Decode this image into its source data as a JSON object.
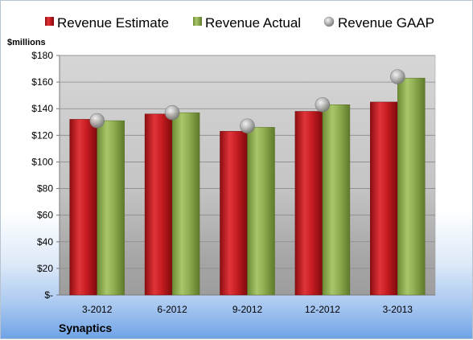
{
  "company": "Synaptics",
  "unit_label": "$millions",
  "colors": {
    "estimate": "#c0181c",
    "actual": "#8fae4e",
    "gaap": "#a8a8a8"
  },
  "chart_data": {
    "type": "bar",
    "categories": [
      "3-2012",
      "6-2012",
      "9-2012",
      "12-2012",
      "3-2013"
    ],
    "series": [
      {
        "name": "Revenue Estimate",
        "kind": "bar",
        "values": [
          132,
          136,
          123,
          138,
          145
        ]
      },
      {
        "name": "Revenue Actual",
        "kind": "bar",
        "values": [
          131,
          137,
          126,
          143,
          163
        ]
      },
      {
        "name": "Revenue GAAP",
        "kind": "marker",
        "values": [
          131,
          137,
          127,
          143,
          164
        ]
      }
    ],
    "ylabel": "$millions",
    "ylim": [
      0,
      180
    ],
    "yticks": [
      0,
      20,
      40,
      60,
      80,
      100,
      120,
      140,
      160,
      180
    ],
    "ytick_labels": [
      "$-",
      "$20",
      "$40",
      "$60",
      "$80",
      "$100",
      "$120",
      "$140",
      "$160",
      "$180"
    ],
    "grid": true,
    "legend_position": "top"
  }
}
